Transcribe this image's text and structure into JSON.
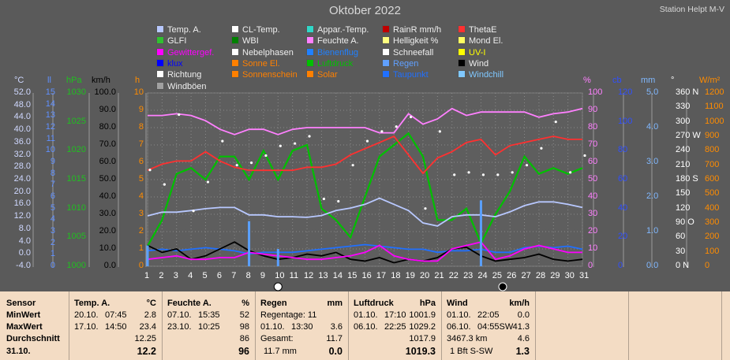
{
  "title": "Oktober 2022",
  "station": "Station Helpt M-V",
  "legend": [
    {
      "label": "Temp. A.",
      "color": "#b8c8ff"
    },
    {
      "label": "CL-Temp.",
      "color": "#ffffff"
    },
    {
      "label": "Appar.-Temp.",
      "color": "#30d8c8"
    },
    {
      "label": "RainR mm/h",
      "color": "#c00000"
    },
    {
      "label": "ThetaE",
      "color": "#ff3030"
    },
    {
      "label": "GLFI",
      "color": "#30c030"
    },
    {
      "label": "WBI",
      "color": "#008000"
    },
    {
      "label": "Feuchte A.",
      "color": "#ff80ff"
    },
    {
      "label": "Helligkeit %",
      "color": "#ffff80"
    },
    {
      "label": "Mond El.",
      "color": "#ffff60"
    },
    {
      "label": "Gewittergef.",
      "color": "#ff00ff"
    },
    {
      "label": "Nebelphasen",
      "color": "#ffffff"
    },
    {
      "label": "Bienenflug",
      "color": "#2080ff"
    },
    {
      "label": "Schneefall",
      "color": "#ffffff"
    },
    {
      "label": "UV-I",
      "color": "#ffff00"
    },
    {
      "label": "klux",
      "color": "#0000ff"
    },
    {
      "label": "Sonne El.",
      "color": "#ff8000"
    },
    {
      "label": "Luftdruck",
      "color": "#00c000"
    },
    {
      "label": "Regen",
      "color": "#60a0ff"
    },
    {
      "label": "Wind",
      "color": "#000000"
    },
    {
      "label": "Richtung",
      "color": "#ffffff"
    },
    {
      "label": "Sonnenschein",
      "color": "#ff8000"
    },
    {
      "label": "Solar",
      "color": "#ff8000"
    },
    {
      "label": "Taupunkt",
      "color": "#2070ff"
    },
    {
      "label": "Windchill",
      "color": "#80c8ff"
    },
    {
      "label": "Windböen",
      "color": "#a0a0a0"
    }
  ],
  "axes": {
    "units": {
      "temp": "°C",
      "uv": "ll",
      "hpa": "hPa",
      "kmh": "km/h",
      "h": "h",
      "pct": "%",
      "cb": "cb",
      "mm": "mm",
      "deg": "°",
      "wm2": "W/m²"
    },
    "temp_ticks": [
      "52.0",
      "48.0",
      "44.0",
      "40.0",
      "36.0",
      "32.0",
      "28.0",
      "24.0",
      "20.0",
      "16.0",
      "12.0",
      "8.0",
      "4.0",
      "0.0",
      "-4.0"
    ],
    "uv_ticks": [
      "15",
      "14",
      "13",
      "12",
      "11",
      "10",
      "9",
      "8",
      "7",
      "6",
      "5",
      "4",
      "3",
      "2",
      "1",
      "0"
    ],
    "hpa_ticks": [
      "1030",
      "1025",
      "1020",
      "1015",
      "1010",
      "1005",
      "1000"
    ],
    "kmh_ticks": [
      "100.0",
      "90.0",
      "80.0",
      "70.0",
      "60.0",
      "50.0",
      "40.0",
      "30.0",
      "20.0",
      "10.0",
      "0.0"
    ],
    "h_ticks": [
      "10",
      "9",
      "8",
      "7",
      "6",
      "5",
      "4",
      "3",
      "2",
      "1",
      "0"
    ],
    "pct_ticks": [
      "100",
      "90",
      "80",
      "70",
      "60",
      "50",
      "40",
      "30",
      "20",
      "10",
      "0"
    ],
    "cb_ticks": [
      "120",
      "100",
      "80",
      "60",
      "40",
      "20",
      "0"
    ],
    "mm_ticks": [
      "5.0",
      "4.0",
      "3.0",
      "2.0",
      "1.0",
      "0.0"
    ],
    "deg_ticks": [
      "360 N",
      "330",
      "300",
      "270 W",
      "240",
      "210",
      "180 S",
      "150",
      "120",
      "90  O",
      "60",
      "30",
      "0   N"
    ],
    "wm2_ticks": [
      "1200",
      "1100",
      "1000",
      "900",
      "800",
      "700",
      "600",
      "500",
      "400",
      "300",
      "200",
      "100",
      "0"
    ],
    "days": [
      "1",
      "2",
      "3",
      "4",
      "5",
      "6",
      "7",
      "8",
      "9",
      "10",
      "11",
      "12",
      "13",
      "14",
      "15",
      "16",
      "17",
      "18",
      "19",
      "20",
      "21",
      "22",
      "23",
      "24",
      "25",
      "26",
      "27",
      "28",
      "29",
      "30",
      "31"
    ]
  },
  "chart_data": {
    "type": "line",
    "x": [
      1,
      2,
      3,
      4,
      5,
      6,
      7,
      8,
      9,
      10,
      11,
      12,
      13,
      14,
      15,
      16,
      17,
      18,
      19,
      20,
      21,
      22,
      23,
      24,
      25,
      26,
      27,
      28,
      29,
      30,
      31
    ],
    "series": [
      {
        "name": "Feuchte A.",
        "color": "#ff80ff",
        "axis": "pct",
        "values": [
          87,
          87,
          88,
          87,
          84,
          79,
          76,
          79,
          79,
          76,
          79,
          80,
          80,
          80,
          80,
          80,
          77,
          77,
          88,
          82,
          85,
          91,
          87,
          89,
          89,
          89,
          89,
          86,
          88,
          89,
          91
        ]
      },
      {
        "name": "Luftdruck",
        "color": "#00c000",
        "axis": "hpa",
        "values": [
          1003.5,
          1008,
          1016,
          1017,
          1015,
          1019,
          1019,
          1015,
          1020,
          1015,
          1020,
          1021,
          1010,
          1008,
          1005,
          1012,
          1019,
          1021,
          1023,
          1019,
          1008,
          1008,
          1010,
          1004,
          1009,
          1013,
          1019,
          1016,
          1017,
          1016,
          1017
        ]
      },
      {
        "name": "ThetaE",
        "color": "#ff3030",
        "axis": "temp",
        "values": [
          27,
          29,
          30,
          30,
          33,
          30,
          28,
          27,
          27,
          27,
          27,
          28,
          28,
          29,
          32,
          34,
          36,
          38,
          32,
          26,
          31,
          33,
          36,
          37,
          32,
          35,
          36,
          37,
          38,
          37,
          37
        ]
      },
      {
        "name": "Temp. A.",
        "color": "#b8c8ff",
        "axis": "temp",
        "values": [
          12.3,
          13.5,
          13.5,
          14.0,
          14.6,
          15.0,
          15.0,
          12.6,
          12.6,
          12.0,
          12.0,
          11.8,
          12.4,
          14.0,
          14.8,
          16.0,
          18.0,
          16.0,
          14.0,
          10.0,
          9.0,
          12.0,
          12.6,
          12.6,
          12.0,
          13.6,
          15.6,
          16.8,
          16.8,
          16.0,
          15.0
        ]
      },
      {
        "name": "Taupunkt",
        "color": "#2070ff",
        "axis": "temp",
        "values": [
          1.0,
          1.5,
          1.0,
          1.5,
          2.0,
          1.5,
          1.0,
          0.0,
          0.5,
          0.5,
          0.5,
          1.0,
          1.5,
          2.0,
          2.5,
          3.0,
          2.5,
          2.0,
          1.5,
          1.5,
          0.5,
          1.0,
          1.0,
          1.5,
          0.5,
          0.5,
          2.0,
          2.5,
          2.0,
          2.5,
          1.5
        ]
      },
      {
        "name": "Wind",
        "color": "#000000",
        "axis": "kmh",
        "values": [
          12,
          8,
          10,
          4,
          6,
          10,
          14,
          9,
          6,
          4,
          5,
          7,
          6,
          8,
          4,
          3,
          5,
          2,
          4,
          3,
          5,
          10,
          11,
          6,
          3,
          4,
          5,
          7,
          4,
          3,
          4
        ]
      },
      {
        "name": "Gewittergef.",
        "color": "#ff00ff",
        "axis": "kmh",
        "values": [
          4,
          5,
          6,
          4,
          4,
          5,
          5,
          8,
          7,
          6,
          5,
          4,
          4,
          5,
          6,
          8,
          12,
          6,
          4,
          3,
          3,
          10,
          12,
          14,
          4,
          6,
          10,
          12,
          10,
          8,
          8
        ]
      }
    ],
    "direction_deg": [
      200,
      170,
      315,
      115,
      175,
      260,
      210,
      215,
      230,
      250,
      255,
      270,
      140,
      135,
      210,
      260,
      280,
      290,
      310,
      120,
      280,
      190,
      195,
      190,
      190,
      195,
      210,
      245,
      300,
      195,
      230
    ],
    "ylim_pct": [
      0,
      100
    ],
    "ylim_hpa": [
      1000,
      1030
    ],
    "ylim_temp": [
      -4,
      52
    ],
    "ylim_kmh": [
      0,
      100
    ]
  },
  "stats": {
    "headers": {
      "sensor": "Sensor",
      "temp": "Temp. A.",
      "temp_unit": "°C",
      "hum": "Feuchte A.",
      "hum_unit": "%",
      "rain": "Regen",
      "rain_unit": "mm",
      "press": "Luftdruck",
      "press_unit": "hPa",
      "wind": "Wind",
      "wind_unit": "km/h"
    },
    "rows": {
      "min": {
        "label": "MinWert",
        "temp_date": "20.10.",
        "temp_time": "07:45",
        "temp_val": "2.8",
        "hum_date": "07.10.",
        "hum_time": "15:35",
        "hum_val": "52",
        "rain_text": "Regentage: 11",
        "press_date": "01.10.",
        "press_time": "17:10",
        "press_val": "1001.9",
        "wind_date": "01.10.",
        "wind_time": "22:05",
        "wind_val": "0.0"
      },
      "max": {
        "label": "MaxWert",
        "temp_date": "17.10.",
        "temp_time": "14:50",
        "temp_val": "23.4",
        "hum_date": "23.10.",
        "hum_time": "10:25",
        "hum_val": "98",
        "rain_date": "01.10.",
        "rain_time": "13:30",
        "rain_val": "3.6",
        "press_date": "06.10.",
        "press_time": "22:25",
        "press_val": "1029.2",
        "wind_date": "06.10.",
        "wind_time": "04:55SW",
        "wind_val": "41.3"
      },
      "avg": {
        "label": "Durchschnitt",
        "temp_val": "12.25",
        "hum_val": "86",
        "rain_label": "Gesamt:",
        "rain_val": "11.7",
        "press_val": "1017.9",
        "wind_dist": "3467.3 km",
        "wind_val": "4.6"
      },
      "today": {
        "label": "31.10.",
        "temp_val": "12.2",
        "hum_val": "96",
        "rain_mm": "11.7 mm",
        "rain_val": "0.0",
        "press_val": "1019.3",
        "wind_bft": "1 Bft S-SW",
        "wind_val": "1.3"
      }
    }
  }
}
